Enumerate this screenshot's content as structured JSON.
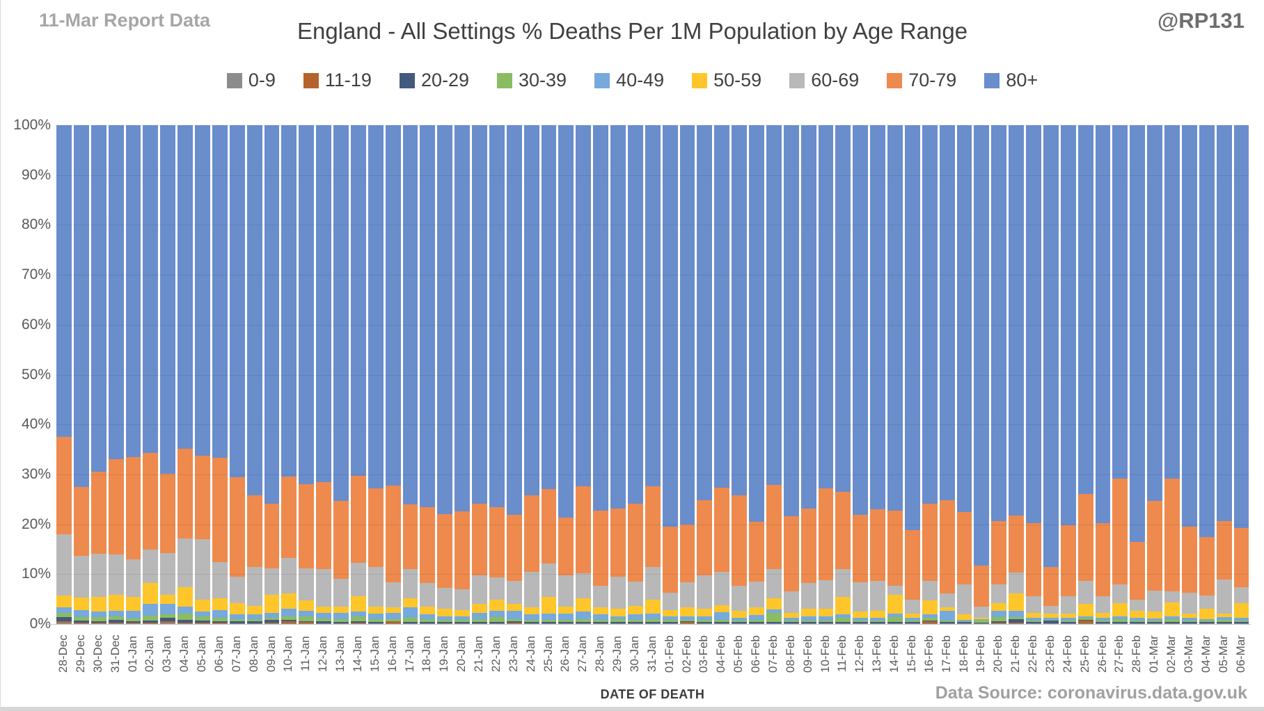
{
  "header": {
    "report_label": "11-Mar Report Data",
    "title": "England - All Settings % Deaths Per 1M Population by Age Range",
    "handle": "@RP131"
  },
  "footer": {
    "xaxis_title": "DATE OF DEATH",
    "data_source": "Data Source: coronavirus.data.gov.uk"
  },
  "chart_data": {
    "type": "bar",
    "stacked": true,
    "units": "percent",
    "title": "England - All Settings % Deaths Per 1M Population by Age Range",
    "xlabel": "DATE OF DEATH",
    "ylabel": "",
    "ylim": [
      0,
      100
    ],
    "grid": true,
    "legend_position": "top",
    "y_ticks": [
      "100%",
      "90%",
      "80%",
      "70%",
      "60%",
      "50%",
      "40%",
      "30%",
      "20%",
      "10%",
      "0%"
    ],
    "categories": [
      "28-Dec",
      "29-Dec",
      "30-Dec",
      "31-Dec",
      "01-Jan",
      "02-Jan",
      "03-Jan",
      "04-Jan",
      "05-Jan",
      "06-Jan",
      "07-Jan",
      "08-Jan",
      "09-Jan",
      "10-Jan",
      "11-Jan",
      "12-Jan",
      "13-Jan",
      "14-Jan",
      "15-Jan",
      "16-Jan",
      "17-Jan",
      "18-Jan",
      "19-Jan",
      "20-Jan",
      "21-Jan",
      "22-Jan",
      "23-Jan",
      "24-Jan",
      "25-Jan",
      "26-Jan",
      "27-Jan",
      "28-Jan",
      "29-Jan",
      "30-Jan",
      "31-Jan",
      "01-Feb",
      "02-Feb",
      "03-Feb",
      "04-Feb",
      "05-Feb",
      "06-Feb",
      "07-Feb",
      "08-Feb",
      "09-Feb",
      "10-Feb",
      "11-Feb",
      "12-Feb",
      "13-Feb",
      "14-Feb",
      "15-Feb",
      "16-Feb",
      "17-Feb",
      "18-Feb",
      "19-Feb",
      "20-Feb",
      "21-Feb",
      "22-Feb",
      "23-Feb",
      "24-Feb",
      "25-Feb",
      "26-Feb",
      "27-Feb",
      "28-Feb",
      "01-Mar",
      "02-Mar",
      "03-Mar",
      "04-Mar",
      "05-Mar",
      "06-Mar"
    ],
    "series": [
      {
        "name": "0-9",
        "color": "#8C8C8C",
        "values": [
          0.3,
          0.2,
          0.2,
          0.2,
          0.2,
          0.2,
          0.3,
          0.2,
          0.2,
          0.2,
          0.1,
          0.1,
          0.2,
          0.2,
          0.1,
          0.1,
          0.1,
          0.1,
          0.1,
          0.1,
          0.1,
          0.1,
          0.1,
          0.1,
          0.1,
          0.1,
          0.2,
          0.1,
          0.1,
          0.1,
          0.1,
          0.1,
          0.1,
          0.1,
          0.1,
          0.1,
          0.1,
          0.1,
          0.1,
          0.1,
          0.1,
          0.1,
          0.1,
          0.1,
          0.1,
          0.1,
          0.1,
          0.1,
          0.1,
          0.1,
          0.1,
          0.1,
          0.1,
          0.1,
          0.2,
          0.2,
          0.1,
          0.1,
          0.1,
          0.1,
          0.1,
          0.1,
          0.1,
          0.1,
          0.1,
          0.1,
          0.1,
          0.1,
          0.1
        ]
      },
      {
        "name": "11-19",
        "color": "#B4632C",
        "values": [
          0.2,
          0.1,
          0.1,
          0.1,
          0.1,
          0.1,
          0.2,
          0.1,
          0.1,
          0.1,
          0.1,
          0.1,
          0.1,
          0.4,
          0.3,
          0.1,
          0.1,
          0.2,
          0.1,
          0.4,
          0.1,
          0.1,
          0.1,
          0.1,
          0.1,
          0.1,
          0.1,
          0.1,
          0.1,
          0.1,
          0.1,
          0.1,
          0.1,
          0.1,
          0.1,
          0.1,
          0.3,
          0.1,
          0.1,
          0.1,
          0.1,
          0.1,
          0.1,
          0.1,
          0.1,
          0.1,
          0.1,
          0.1,
          0.1,
          0.1,
          0.5,
          0.1,
          0.1,
          0.1,
          0.1,
          0.1,
          0.1,
          0.1,
          0.1,
          0.6,
          0.1,
          0.1,
          0.1,
          0.1,
          0.1,
          0.1,
          0.1,
          0.1,
          0.1
        ]
      },
      {
        "name": "20-29",
        "color": "#44597E",
        "values": [
          0.9,
          0.4,
          0.3,
          0.6,
          0.3,
          0.4,
          0.7,
          0.6,
          0.4,
          0.3,
          0.3,
          0.3,
          0.5,
          0.3,
          0.1,
          0.3,
          0.2,
          0.2,
          0.2,
          0.1,
          0.2,
          0.2,
          0.2,
          0.2,
          0.2,
          0.2,
          0.3,
          0.2,
          0.2,
          0.2,
          0.2,
          0.2,
          0.2,
          0.2,
          0.2,
          0.2,
          0.1,
          0.2,
          0.2,
          0.2,
          0.2,
          0.2,
          0.2,
          0.2,
          0.2,
          0.2,
          0.2,
          0.2,
          0.2,
          0.2,
          0.1,
          0.2,
          0.2,
          0.1,
          0.2,
          0.7,
          0.2,
          0.5,
          0.2,
          0.2,
          0.2,
          0.2,
          0.2,
          0.2,
          0.2,
          0.2,
          0.2,
          0.2,
          0.2
        ]
      },
      {
        "name": "30-39",
        "color": "#8ABD62",
        "values": [
          0.8,
          0.7,
          0.8,
          0.6,
          0.5,
          1.0,
          0.7,
          1.2,
          0.8,
          0.6,
          0.5,
          0.5,
          0.5,
          0.7,
          1.1,
          0.6,
          0.6,
          1.0,
          0.6,
          0.4,
          0.8,
          0.6,
          0.4,
          0.4,
          0.6,
          1.0,
          0.4,
          0.5,
          0.5,
          0.5,
          0.6,
          0.5,
          0.6,
          0.5,
          0.6,
          0.4,
          0.3,
          0.4,
          0.4,
          0.3,
          0.4,
          1.9,
          0.3,
          0.3,
          0.3,
          0.8,
          0.3,
          0.3,
          1.0,
          0.3,
          0.5,
          0.3,
          0.2,
          0.5,
          0.9,
          0.4,
          0.3,
          0.2,
          0.3,
          0.3,
          0.3,
          0.6,
          0.3,
          0.3,
          0.6,
          0.3,
          0.3,
          0.5,
          0.3
        ]
      },
      {
        "name": "40-49",
        "color": "#76A9DC",
        "values": [
          1.1,
          1.4,
          1.1,
          1.2,
          1.5,
          2.3,
          2.2,
          1.4,
          1.0,
          1.6,
          0.9,
          1.0,
          1.0,
          1.5,
          1.0,
          1.2,
          1.2,
          1.0,
          1.1,
          1.2,
          2.1,
          0.9,
          0.7,
          0.7,
          1.2,
          1.2,
          1.6,
          1.1,
          1.2,
          1.2,
          1.5,
          1.0,
          0.6,
          1.1,
          1.1,
          0.7,
          0.7,
          0.8,
          1.6,
          0.5,
          1.0,
          0.7,
          0.5,
          0.8,
          0.9,
          0.8,
          0.5,
          0.5,
          0.7,
          0.5,
          0.8,
          1.9,
          0.2,
          0.2,
          1.2,
          1.2,
          0.5,
          0.4,
          0.5,
          0.3,
          0.5,
          0.6,
          0.5,
          0.4,
          0.6,
          0.5,
          0.3,
          0.5,
          0.5
        ]
      },
      {
        "name": "50-59",
        "color": "#FFC62B",
        "values": [
          2.4,
          2.5,
          3.0,
          3.1,
          2.9,
          4.2,
          1.7,
          3.9,
          2.4,
          2.3,
          2.3,
          1.7,
          3.6,
          3.0,
          2.2,
          1.2,
          1.3,
          3.1,
          1.4,
          1.2,
          1.9,
          1.6,
          1.6,
          1.3,
          1.8,
          2.3,
          1.4,
          1.4,
          3.3,
          1.4,
          2.6,
          1.4,
          1.5,
          1.7,
          2.8,
          1.3,
          1.9,
          1.5,
          1.4,
          1.4,
          1.5,
          2.2,
          1.1,
          1.6,
          1.5,
          3.4,
          1.3,
          1.4,
          3.7,
          0.9,
          2.7,
          0.7,
          1.2,
          0.2,
          1.6,
          3.5,
          1.1,
          0.8,
          0.9,
          2.5,
          1.1,
          2.6,
          1.4,
          1.4,
          2.7,
          0.9,
          2.1,
          0.7,
          3.0
        ]
      },
      {
        "name": "60-69",
        "color": "#B8B8B8",
        "values": [
          12.3,
          8.4,
          8.6,
          8.1,
          7.5,
          6.7,
          8.4,
          9.8,
          12.1,
          7.3,
          5.3,
          7.7,
          5.3,
          7.2,
          6.4,
          7.5,
          5.6,
          6.7,
          7.9,
          5.0,
          5.8,
          4.7,
          4.1,
          4.2,
          5.8,
          4.4,
          4.6,
          7.1,
          6.8,
          6.3,
          5.1,
          4.4,
          6.4,
          4.8,
          6.5,
          3.5,
          5.0,
          6.7,
          6.7,
          5.1,
          5.2,
          5.8,
          4.2,
          5.1,
          5.7,
          5.6,
          5.9,
          6.0,
          1.9,
          2.8,
          3.9,
          2.8,
          6.0,
          2.3,
          3.7,
          4.2,
          3.3,
          1.6,
          3.5,
          4.6,
          3.3,
          3.7,
          2.3,
          4.2,
          2.2,
          4.2,
          2.7,
          6.8,
          3.2
        ]
      },
      {
        "name": "70-79",
        "color": "#EE8A4D",
        "values": [
          19.5,
          13.8,
          16.4,
          19.1,
          20.5,
          19.4,
          16.0,
          17.9,
          16.7,
          20.9,
          20.0,
          14.4,
          13.0,
          16.3,
          16.8,
          17.4,
          15.6,
          17.4,
          15.8,
          19.3,
          13.0,
          15.2,
          14.9,
          15.6,
          14.3,
          14.2,
          13.3,
          15.3,
          14.8,
          11.6,
          17.4,
          15.1,
          13.7,
          15.7,
          16.2,
          13.3,
          11.6,
          15.0,
          16.9,
          18.1,
          12.0,
          16.9,
          15.2,
          15.0,
          18.4,
          15.5,
          13.5,
          14.4,
          15.1,
          14.0,
          15.6,
          18.7,
          14.4,
          8.2,
          12.8,
          11.4,
          14.7,
          7.7,
          14.2,
          17.5,
          14.7,
          21.2,
          11.6,
          18.0,
          22.6,
          13.3,
          11.7,
          11.8,
          11.9
        ]
      },
      {
        "name": "80+",
        "color": "#6A8DCC",
        "values": [
          62.5,
          72.5,
          69.5,
          67.0,
          66.5,
          65.7,
          69.8,
          64.9,
          66.3,
          66.7,
          70.5,
          74.2,
          75.8,
          70.4,
          72.0,
          71.6,
          75.3,
          70.3,
          72.8,
          72.3,
          76.0,
          76.6,
          77.9,
          77.4,
          75.9,
          76.5,
          78.1,
          74.2,
          73.0,
          78.6,
          72.4,
          77.2,
          76.8,
          75.8,
          72.4,
          80.4,
          80.0,
          75.2,
          72.6,
          74.2,
          79.5,
          72.1,
          78.3,
          76.8,
          72.8,
          73.5,
          78.1,
          77.0,
          77.2,
          81.1,
          75.8,
          75.2,
          77.6,
          88.3,
          79.3,
          78.3,
          79.7,
          88.6,
          80.2,
          73.9,
          79.7,
          70.9,
          83.5,
          75.3,
          70.9,
          80.4,
          82.5,
          79.3,
          80.7
        ]
      }
    ]
  }
}
